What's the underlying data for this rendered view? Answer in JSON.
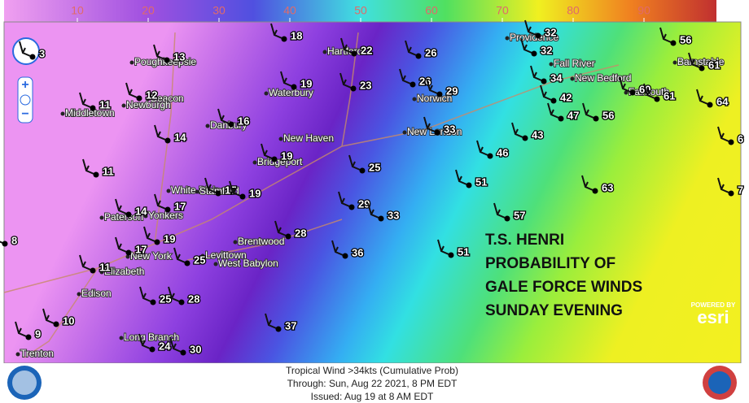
{
  "colorbar": {
    "ticks": [
      10,
      20,
      30,
      40,
      50,
      60,
      70,
      80,
      90
    ]
  },
  "stations": [
    18,
    22,
    26,
    32,
    56,
    13,
    32,
    61,
    19,
    23,
    26,
    29,
    34,
    60,
    61,
    64,
    12,
    11,
    42,
    47,
    56,
    16,
    33,
    14,
    43,
    46,
    19,
    25,
    11,
    51,
    17,
    19,
    17,
    63,
    29,
    14,
    33,
    57,
    8,
    28,
    19,
    17,
    51,
    36,
    25,
    11,
    25,
    28,
    10,
    37,
    9,
    24,
    30,
    3,
    6,
    7
  ],
  "cities": [
    "Poughkeepsie",
    "Beacon",
    "Newburgh",
    "Middletown",
    "Danbury",
    "Hartford",
    "Waterbury",
    "Norwich",
    "New Haven",
    "Bridgeport",
    "New London",
    "Providence",
    "Fall River",
    "New Bedford",
    "Barnstable",
    "Falmouth",
    "White Plains",
    "Stamford",
    "Paterson",
    "Yonkers",
    "New York",
    "Elizabeth",
    "Edison",
    "Brentwood",
    "Levittown",
    "West Babylon",
    "Long Branch",
    "Trenton"
  ],
  "annotation": [
    "T.S. HENRI",
    "PROBABILITY OF",
    "GALE FORCE WINDS",
    "SUNDAY EVENING"
  ],
  "footer": [
    "Tropical Wind >34kts (Cumulative Prob)",
    "Through: Sun, Aug 22 2021,   8 PM EDT",
    "Issued: Aug 19 at 8 AM EDT"
  ],
  "branding": [
    "POWERED BY",
    "esri"
  ]
}
